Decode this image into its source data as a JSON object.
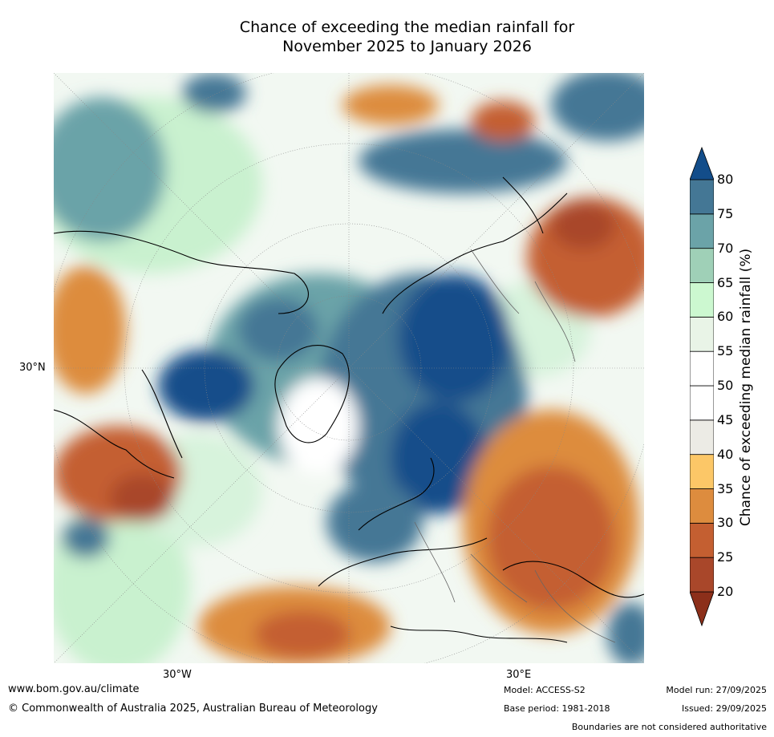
{
  "title": {
    "line1": "Chance of exceeding the median rainfall for",
    "line2": "November 2025 to January 2026"
  },
  "map": {
    "latitude_labels": [
      "30°N"
    ],
    "longitude_labels": [
      "30°W",
      "30°E"
    ]
  },
  "colorbar": {
    "label": "Chance of exceeding median rainfall (%)",
    "ticks": [
      "20",
      "25",
      "30",
      "35",
      "40",
      "45",
      "50",
      "55",
      "60",
      "65",
      "70",
      "75",
      "80"
    ],
    "colors": [
      "#8c2f1a",
      "#a9472a",
      "#c45f31",
      "#dd8c3e",
      "#fcc767",
      "#ecebe5",
      "#ffffff",
      "#ffffff",
      "#e9f4e7",
      "#ccf8d0",
      "#9fd0b7",
      "#6ba3a8",
      "#447795",
      "#134d8a"
    ]
  },
  "footer": {
    "website": "www.bom.gov.au/climate",
    "copyright": "© Commonwealth of Australia 2025, Australian Bureau of Meteorology",
    "model": "Model: ACCESS-S2",
    "base_period": "Base period: 1981-2018",
    "model_run": "Model run: 27/09/2025",
    "issued": "Issued: 29/09/2025",
    "boundaries_note": "Boundaries are not considered authoritative"
  }
}
